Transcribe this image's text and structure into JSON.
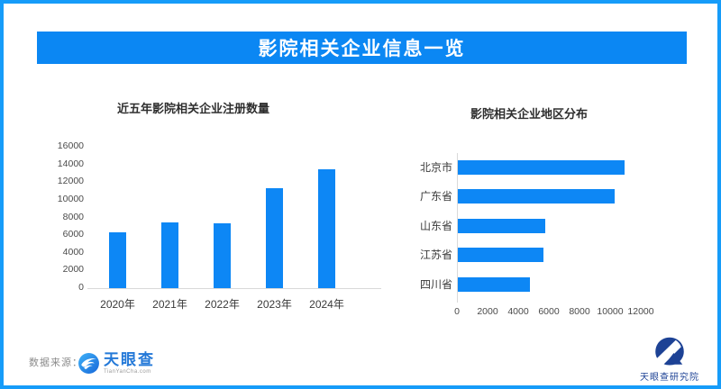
{
  "page": {
    "title": "影院相关企业信息一览",
    "footer": {
      "source_label": "数据来源：",
      "logo_text": "天眼查",
      "logo_subtext": "TianYanCha.com",
      "research_logo_text": "天眼查研究院"
    },
    "colors": {
      "banner_blue": "#0b87f3",
      "bar_blue": "#0d87f5",
      "border_blue": "#169cf9",
      "logo_blue": "#2479d8",
      "navy": "#1d4295"
    }
  },
  "chart_data": [
    {
      "type": "bar",
      "title": "近五年影院相关企业注册数量",
      "categories": [
        "2020年",
        "2021年",
        "2022年",
        "2023年",
        "2024年"
      ],
      "values": [
        6300,
        7450,
        7350,
        11300,
        13500
      ],
      "xlabel": "",
      "ylabel": "",
      "ylim": [
        0,
        16000
      ],
      "yticks": [
        0,
        2000,
        4000,
        6000,
        8000,
        10000,
        12000,
        14000,
        16000
      ],
      "grid": false,
      "bar_color": "#0d87f5"
    },
    {
      "type": "bar",
      "orientation": "horizontal",
      "title": "影院相关企业地区分布",
      "categories": [
        "北京市",
        "广东省",
        "山东省",
        "江苏省",
        "四川省"
      ],
      "values": [
        10900,
        10250,
        5700,
        5600,
        4700
      ],
      "xlabel": "",
      "ylabel": "",
      "xlim": [
        0,
        12000
      ],
      "xticks": [
        0,
        2000,
        4000,
        6000,
        8000,
        10000,
        12000
      ],
      "grid": false,
      "bar_color": "#0d87f5"
    }
  ]
}
